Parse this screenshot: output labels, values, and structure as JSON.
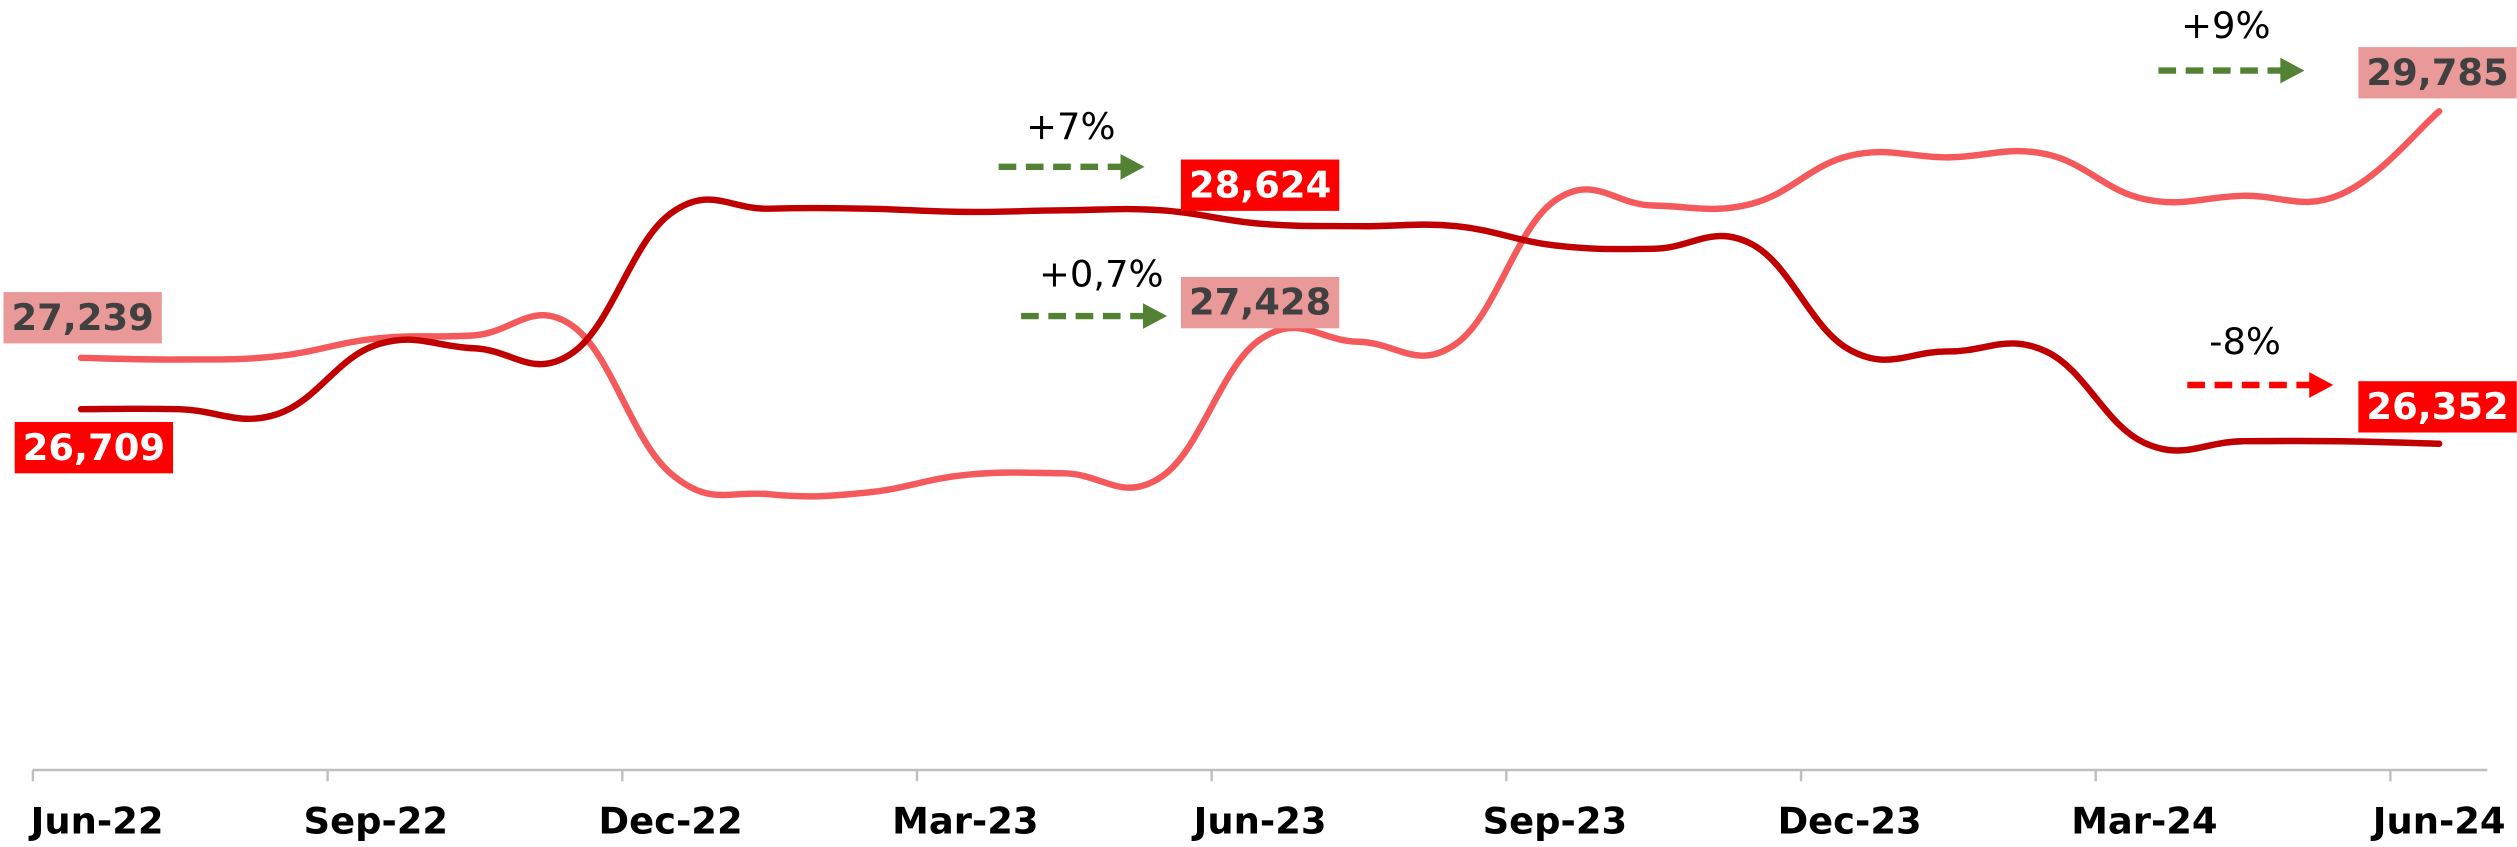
{
  "chart_data": {
    "type": "line",
    "categories": [
      "Jun-22",
      null,
      null,
      "Sep-22",
      null,
      null,
      "Dec-22",
      null,
      null,
      "Mar-23",
      null,
      null,
      "Jun-23",
      null,
      null,
      "Sep-23",
      null,
      null,
      "Dec-23",
      null,
      null,
      "Mar-24",
      null,
      null,
      "Jun-24"
    ],
    "series": [
      {
        "color": "#f4595c",
        "values": [
          27239,
          27222,
          27256,
          27438,
          27471,
          27570,
          26047,
          25831,
          25848,
          26030,
          26047,
          26014,
          27428,
          27405,
          27388,
          28862,
          28812,
          28829,
          29326,
          29309,
          29342,
          28878,
          28912,
          28928,
          29785
        ],
        "value_labels": [
          "27,239",
          null,
          null,
          null,
          null,
          null,
          null,
          null,
          null,
          null,
          null,
          null,
          "27,428",
          null,
          null,
          null,
          null,
          null,
          null,
          null,
          null,
          null,
          null,
          null,
          "29,785"
        ],
        "label_color": "#ea9999",
        "label_text_color": "#404040"
      },
      {
        "color": "#c00000",
        "values": [
          26709,
          26709,
          26659,
          27371,
          27338,
          27289,
          28729,
          28779,
          28779,
          28746,
          28762,
          28762,
          28624,
          28598,
          28598,
          28399,
          28365,
          28415,
          27322,
          27305,
          27305,
          26361,
          26378,
          26378,
          26352
        ],
        "value_labels": [
          "26,709",
          null,
          null,
          null,
          null,
          null,
          null,
          null,
          null,
          null,
          null,
          null,
          "28,624",
          null,
          null,
          null,
          null,
          null,
          null,
          null,
          null,
          null,
          null,
          null,
          "26,352"
        ],
        "label_color": "#ff0000",
        "label_text_color": "#ffffff"
      }
    ],
    "ylim": [
      23000,
      31000
    ],
    "annotations": [
      {
        "text": "+7%",
        "color": "#548235"
      },
      {
        "text": "+0,7%",
        "color": "#548235"
      },
      {
        "text": "+9%",
        "color": "#548235"
      },
      {
        "text": "-8%",
        "color": "#ff0000"
      }
    ]
  }
}
